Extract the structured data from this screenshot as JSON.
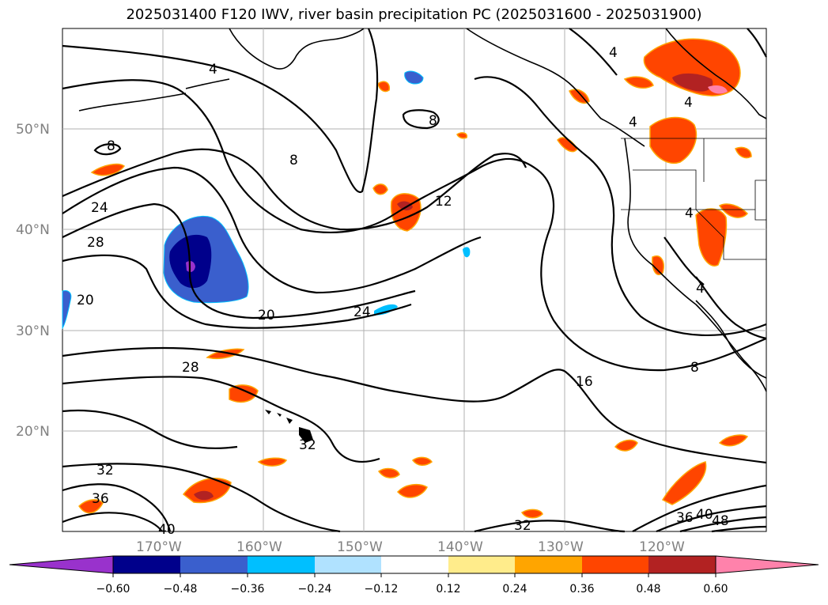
{
  "title": "2025031400 F120 IWV, river basin precipitation PC (2025031600 - 2025031900)",
  "lat_labels": [
    "50°N",
    "40°N",
    "30°N",
    "20°N"
  ],
  "lon_labels": [
    "170°W",
    "160°W",
    "150°W",
    "140°W",
    "130°W",
    "120°W"
  ],
  "contour_labels": [
    "4",
    "8",
    "8",
    "12",
    "16",
    "20",
    "24",
    "28",
    "28",
    "32",
    "32",
    "36",
    "40",
    "8",
    "4",
    "4",
    "4",
    "4",
    "24",
    "20",
    "36",
    "40",
    "48",
    "32",
    "4",
    "8"
  ],
  "colorbar": {
    "ticks": [
      "−0.60",
      "−0.48",
      "−0.36",
      "−0.24",
      "−0.12",
      "0.12",
      "0.24",
      "0.36",
      "0.48",
      "0.60"
    ],
    "colors": [
      "#9932cc",
      "#00008b",
      "#3a5fcd",
      "#00bfff",
      "#b0e2ff",
      "#ffffff",
      "#ffec8b",
      "#ffa500",
      "#ff4500",
      "#b22222",
      "#ff82ab"
    ]
  }
}
